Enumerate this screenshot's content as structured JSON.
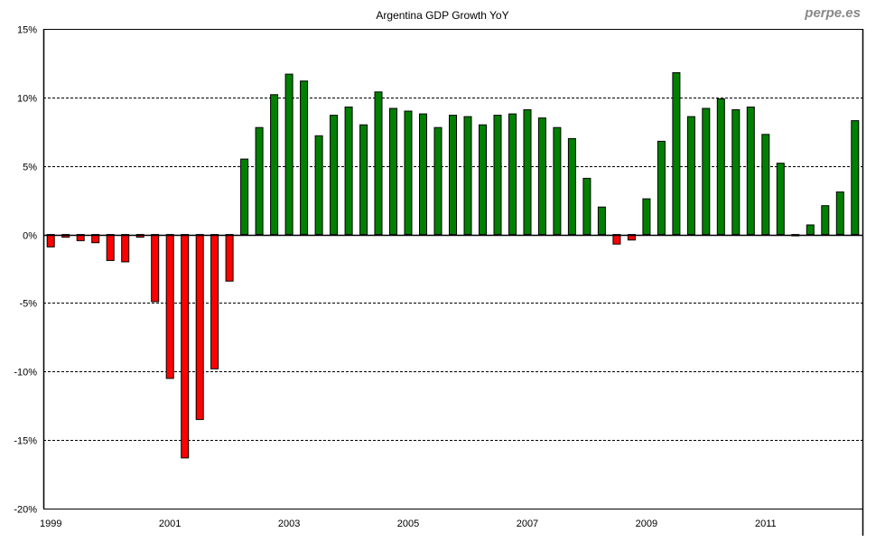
{
  "chart_data": {
    "type": "bar",
    "title": "Argentina GDP Growth YoY",
    "watermark": "perpe.es",
    "xlabel": "",
    "ylabel": "",
    "ylim": [
      -20,
      15
    ],
    "y_ticks": [
      15,
      10,
      5,
      0,
      -5,
      -10,
      -15,
      -20
    ],
    "y_tick_labels": [
      "15%",
      "10%",
      "5%",
      "0%",
      "-5%",
      "-10%",
      "-15%",
      "-20%"
    ],
    "x_tick_labels": [
      {
        "label": "1999",
        "index": 0
      },
      {
        "label": "2001",
        "index": 8
      },
      {
        "label": "2003",
        "index": 16
      },
      {
        "label": "2005",
        "index": 24
      },
      {
        "label": "2007",
        "index": 32
      },
      {
        "label": "2009",
        "index": 40
      },
      {
        "label": "2011",
        "index": 48
      }
    ],
    "grid": "horizontal dashed",
    "frequency": "quarterly",
    "start": "1999Q1",
    "positive_color": "#008000",
    "negative_color": "#ff0000",
    "values": [
      -0.9,
      -0.2,
      -0.45,
      -0.6,
      -1.9,
      -2.0,
      -0.2,
      -4.9,
      -10.5,
      -16.3,
      -13.5,
      -9.8,
      -3.4,
      5.5,
      7.8,
      10.2,
      11.7,
      11.2,
      7.2,
      8.7,
      9.3,
      8.0,
      10.4,
      9.2,
      9.0,
      8.8,
      7.8,
      8.7,
      8.6,
      8.0,
      8.7,
      8.8,
      9.1,
      8.5,
      7.8,
      7.0,
      4.1,
      2.0,
      -0.7,
      -0.4,
      2.6,
      6.8,
      11.8,
      8.6,
      9.2,
      9.9,
      9.1,
      9.3,
      7.3,
      5.2,
      -0.1,
      0.7,
      2.1,
      3.1,
      8.3
    ]
  }
}
